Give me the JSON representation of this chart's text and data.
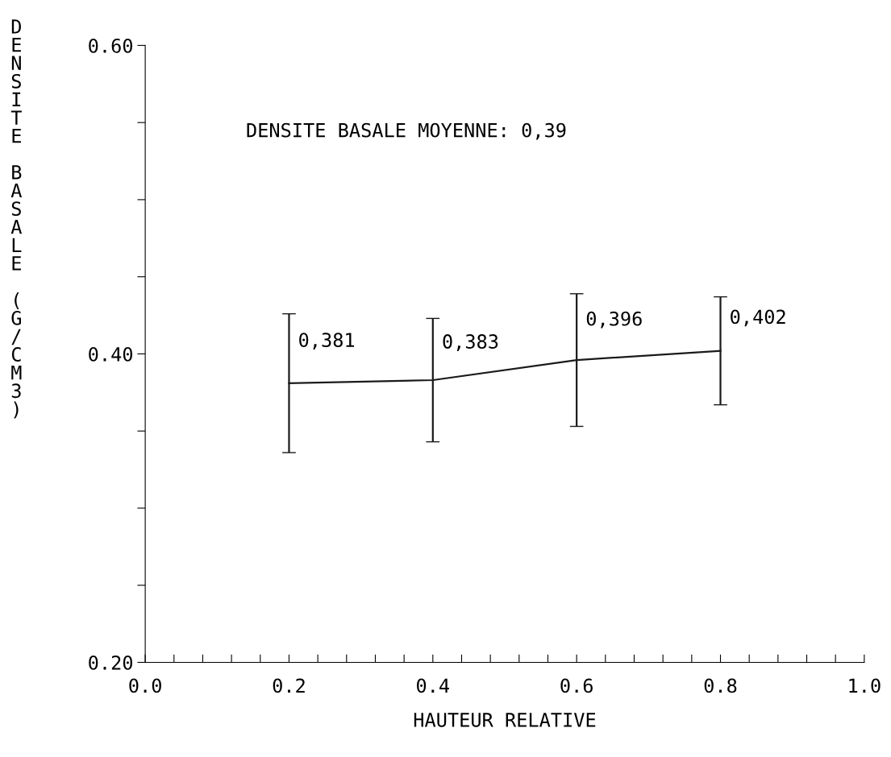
{
  "chart_data": {
    "type": "line",
    "xlabel": "HAUTEUR RELATIVE",
    "ylabel": "DENSITE BASALE (G/CM3)",
    "x": [
      0.2,
      0.4,
      0.6,
      0.8
    ],
    "series": [
      {
        "color": "#1a1a1a",
        "values": [
          0.381,
          0.383,
          0.396,
          0.402
        ],
        "errors": [
          0.045,
          0.04,
          0.043,
          0.035
        ],
        "value_labels": [
          "0,381",
          "0,383",
          "0,396",
          "0,402"
        ]
      }
    ],
    "annotations": [
      "DENSITE BASALE MOYENNE: 0,39"
    ],
    "xlim": [
      0.0,
      1.0
    ],
    "xticks": [
      {
        "value": 0.0,
        "label": "0.0"
      },
      {
        "value": 0.04,
        "label": null
      },
      {
        "value": 0.08,
        "label": null
      },
      {
        "value": 0.12,
        "label": null
      },
      {
        "value": 0.16,
        "label": null
      },
      {
        "value": 0.2,
        "label": "0.2"
      },
      {
        "value": 0.24,
        "label": null
      },
      {
        "value": 0.28,
        "label": null
      },
      {
        "value": 0.32,
        "label": null
      },
      {
        "value": 0.36,
        "label": null
      },
      {
        "value": 0.4,
        "label": "0.4"
      },
      {
        "value": 0.44,
        "label": null
      },
      {
        "value": 0.48,
        "label": null
      },
      {
        "value": 0.52,
        "label": null
      },
      {
        "value": 0.56,
        "label": null
      },
      {
        "value": 0.6,
        "label": "0.6"
      },
      {
        "value": 0.64,
        "label": null
      },
      {
        "value": 0.68,
        "label": null
      },
      {
        "value": 0.72,
        "label": null
      },
      {
        "value": 0.76,
        "label": null
      },
      {
        "value": 0.8,
        "label": "0.8"
      },
      {
        "value": 0.84,
        "label": null
      },
      {
        "value": 0.88,
        "label": null
      },
      {
        "value": 0.92,
        "label": null
      },
      {
        "value": 0.96,
        "label": null
      },
      {
        "value": 1.0,
        "label": "1.0"
      }
    ],
    "ylim": [
      0.2,
      0.6
    ],
    "yticks": [
      {
        "value": 0.2,
        "label": "0.20"
      },
      {
        "value": 0.25,
        "label": null
      },
      {
        "value": 0.3,
        "label": null
      },
      {
        "value": 0.35,
        "label": null
      },
      {
        "value": 0.4,
        "label": "0.40"
      },
      {
        "value": 0.45,
        "label": null
      },
      {
        "value": 0.5,
        "label": null
      },
      {
        "value": 0.55,
        "label": null
      },
      {
        "value": 0.6,
        "label": "0.60"
      }
    ],
    "grid": false,
    "marker": "none",
    "line_style": "solid"
  }
}
